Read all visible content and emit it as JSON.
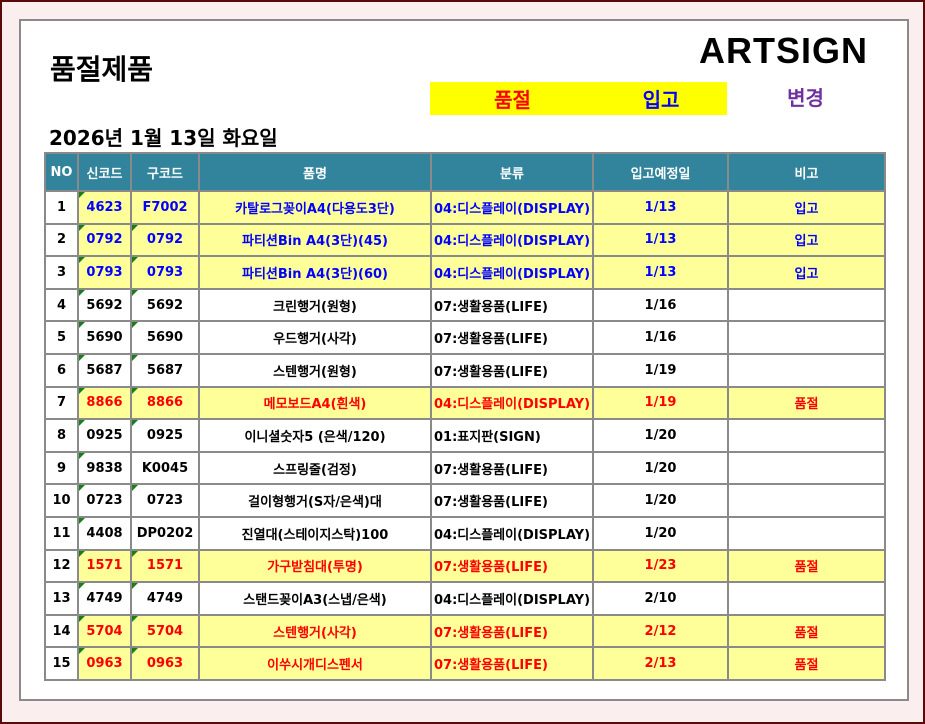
{
  "title": "품절제품",
  "logo": "ARTSIGN",
  "legend": {
    "soldout": "품절",
    "incoming": "입고",
    "change": "변경"
  },
  "date": "2026년 1월 13일 화요일",
  "colors": {
    "header": "#31849b",
    "highlight": "#ffff99",
    "soldout": "#ff0000",
    "incoming": "#0000ff",
    "change": "#7030a0"
  },
  "columns": [
    "NO",
    "신코드",
    "구코드",
    "품명",
    "분류",
    "입고예정일",
    "비고"
  ],
  "rows": [
    {
      "no": "1",
      "new": "4623",
      "old": "F7002",
      "name": "카탈로그꽂이A4(다용도3단)",
      "cat": "04:디스플레이(DISPLAY)",
      "date": "1/13",
      "note": "입고"
    },
    {
      "no": "2",
      "new": "0792",
      "old": "0792",
      "name": "파티션Bin A4(3단)(45)",
      "cat": "04:디스플레이(DISPLAY)",
      "date": "1/13",
      "note": "입고"
    },
    {
      "no": "3",
      "new": "0793",
      "old": "0793",
      "name": "파티션Bin A4(3단)(60)",
      "cat": "04:디스플레이(DISPLAY)",
      "date": "1/13",
      "note": "입고"
    },
    {
      "no": "4",
      "new": "5692",
      "old": "5692",
      "name": "크린행거(원형)",
      "cat": "07:생활용품(LIFE)",
      "date": "1/16",
      "note": ""
    },
    {
      "no": "5",
      "new": "5690",
      "old": "5690",
      "name": "우드행거(사각)",
      "cat": "07:생활용품(LIFE)",
      "date": "1/16",
      "note": ""
    },
    {
      "no": "6",
      "new": "5687",
      "old": "5687",
      "name": "스텐행거(원형)",
      "cat": "07:생활용품(LIFE)",
      "date": "1/19",
      "note": ""
    },
    {
      "no": "7",
      "new": "8866",
      "old": "8866",
      "name": "메모보드A4(흰색)",
      "cat": "04:디스플레이(DISPLAY)",
      "date": "1/19",
      "note": "품절"
    },
    {
      "no": "8",
      "new": "0925",
      "old": "0925",
      "name": "이니셜숫자5 (은색/120)",
      "cat": "01:표지판(SIGN)",
      "date": "1/20",
      "note": ""
    },
    {
      "no": "9",
      "new": "9838",
      "old": "K0045",
      "name": "스프링줄(검정)",
      "cat": "07:생활용품(LIFE)",
      "date": "1/20",
      "note": ""
    },
    {
      "no": "10",
      "new": "0723",
      "old": "0723",
      "name": "걸이형행거(S자/은색)대",
      "cat": "07:생활용품(LIFE)",
      "date": "1/20",
      "note": ""
    },
    {
      "no": "11",
      "new": "4408",
      "old": "DP0202",
      "name": "진열대(스테이지스탁)100",
      "cat": "04:디스플레이(DISPLAY)",
      "date": "1/20",
      "note": ""
    },
    {
      "no": "12",
      "new": "1571",
      "old": "1571",
      "name": "가구받침대(투명)",
      "cat": "07:생활용품(LIFE)",
      "date": "1/23",
      "note": "품절"
    },
    {
      "no": "13",
      "new": "4749",
      "old": "4749",
      "name": "스탠드꽂이A3(스냅/은색)",
      "cat": "04:디스플레이(DISPLAY)",
      "date": "2/10",
      "note": ""
    },
    {
      "no": "14",
      "new": "5704",
      "old": "5704",
      "name": "스텐행거(사각)",
      "cat": "07:생활용품(LIFE)",
      "date": "2/12",
      "note": "품절"
    },
    {
      "no": "15",
      "new": "0963",
      "old": "0963",
      "name": "이쑤시개디스펜서",
      "cat": "07:생활용품(LIFE)",
      "date": "2/13",
      "note": "품절"
    }
  ]
}
